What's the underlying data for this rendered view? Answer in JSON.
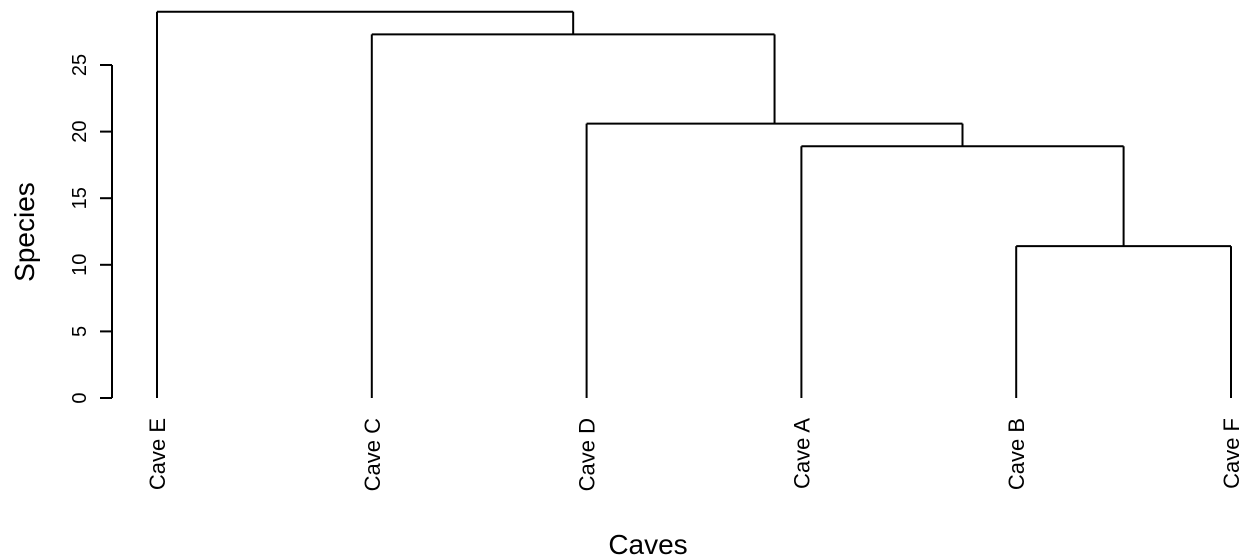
{
  "chart_data": {
    "type": "dendrogram",
    "title": "",
    "xlabel": "Caves",
    "ylabel": "Species",
    "ylim": [
      0,
      30
    ],
    "yticks": [
      0,
      5,
      10,
      15,
      20,
      25
    ],
    "leaves": [
      "Cave E",
      "Cave C",
      "Cave D",
      "Cave A",
      "Cave B",
      "Cave F"
    ],
    "merges": [
      {
        "left": "Cave B",
        "right": "Cave F",
        "height": 11.4
      },
      {
        "left": "Cave A",
        "right": "(Cave B, Cave F)",
        "height": 18.9
      },
      {
        "left": "Cave D",
        "right": "(Cave A, (Cave B, Cave F))",
        "height": 20.6
      },
      {
        "left": "Cave C",
        "right": "(Cave D, (Cave A, (Cave B, Cave F)))",
        "height": 27.3
      },
      {
        "left": "Cave E",
        "right": "(Cave C, (Cave D, (Cave A, (Cave B, Cave F))))",
        "height": 29.0
      }
    ],
    "grid": false
  }
}
